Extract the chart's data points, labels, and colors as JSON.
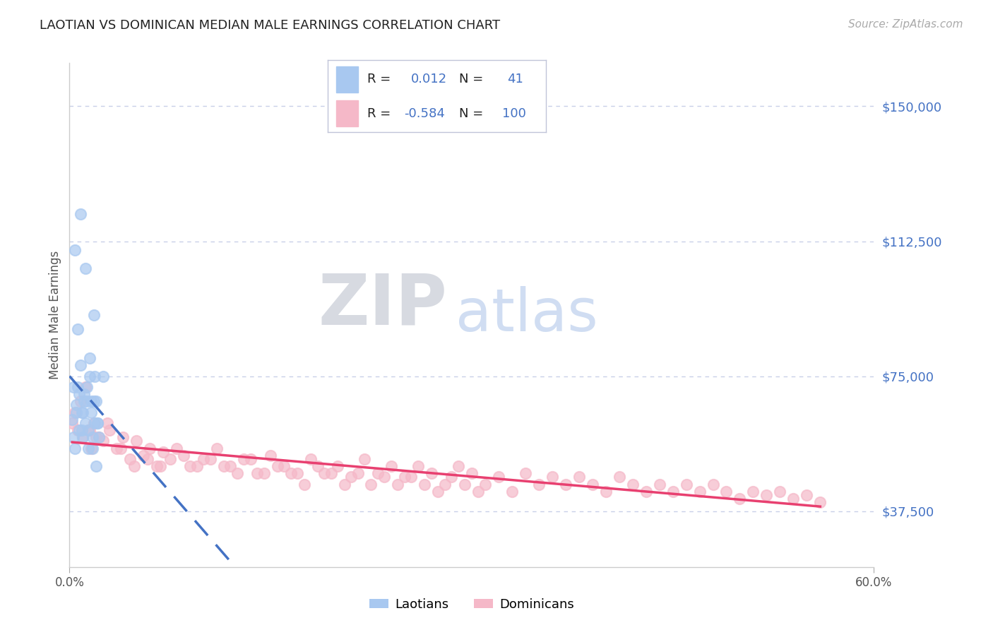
{
  "title": "LAOTIAN VS DOMINICAN MEDIAN MALE EARNINGS CORRELATION CHART",
  "source": "Source: ZipAtlas.com",
  "ylabel": "Median Male Earnings",
  "xlim": [
    0.0,
    0.6
  ],
  "ylim": [
    22000,
    162000
  ],
  "yticks": [
    37500,
    75000,
    112500,
    150000
  ],
  "ytick_labels": [
    "$37,500",
    "$75,000",
    "$112,500",
    "$150,000"
  ],
  "laotian_color": "#a8c8f0",
  "dominican_color": "#f5b8c8",
  "laotian_line_color": "#4472c4",
  "dominican_line_color": "#e84070",
  "grid_color": "#c8d0e8",
  "background_color": "#ffffff",
  "R_laotian": 0.012,
  "N_laotian": 41,
  "R_dominican": -0.584,
  "N_dominican": 100,
  "laotian_x": [
    0.002,
    0.003,
    0.004,
    0.005,
    0.006,
    0.007,
    0.008,
    0.009,
    0.01,
    0.011,
    0.012,
    0.013,
    0.014,
    0.015,
    0.016,
    0.017,
    0.018,
    0.019,
    0.02,
    0.021,
    0.003,
    0.006,
    0.009,
    0.012,
    0.015,
    0.018,
    0.021,
    0.004,
    0.007,
    0.01,
    0.013,
    0.016,
    0.019,
    0.022,
    0.005,
    0.008,
    0.011,
    0.014,
    0.017,
    0.02,
    0.025
  ],
  "laotian_y": [
    63000,
    58000,
    55000,
    67000,
    72000,
    60000,
    78000,
    65000,
    58000,
    70000,
    62000,
    68000,
    55000,
    80000,
    65000,
    58000,
    92000,
    75000,
    68000,
    62000,
    72000,
    88000,
    60000,
    105000,
    75000,
    68000,
    62000,
    110000,
    70000,
    65000,
    72000,
    68000,
    62000,
    58000,
    65000,
    120000,
    68000,
    60000,
    55000,
    50000,
    75000
  ],
  "dominican_x": [
    0.002,
    0.004,
    0.006,
    0.008,
    0.01,
    0.012,
    0.014,
    0.016,
    0.018,
    0.02,
    0.025,
    0.03,
    0.035,
    0.04,
    0.045,
    0.05,
    0.055,
    0.06,
    0.065,
    0.07,
    0.075,
    0.08,
    0.09,
    0.1,
    0.11,
    0.12,
    0.13,
    0.14,
    0.15,
    0.16,
    0.17,
    0.18,
    0.19,
    0.2,
    0.21,
    0.22,
    0.23,
    0.24,
    0.25,
    0.26,
    0.27,
    0.28,
    0.29,
    0.3,
    0.31,
    0.32,
    0.33,
    0.34,
    0.35,
    0.36,
    0.37,
    0.38,
    0.39,
    0.4,
    0.41,
    0.42,
    0.43,
    0.44,
    0.45,
    0.46,
    0.47,
    0.48,
    0.49,
    0.5,
    0.51,
    0.52,
    0.53,
    0.54,
    0.55,
    0.56,
    0.015,
    0.022,
    0.028,
    0.038,
    0.048,
    0.058,
    0.068,
    0.085,
    0.095,
    0.105,
    0.115,
    0.125,
    0.135,
    0.145,
    0.155,
    0.165,
    0.175,
    0.185,
    0.195,
    0.205,
    0.215,
    0.225,
    0.235,
    0.245,
    0.255,
    0.265,
    0.275,
    0.285,
    0.295,
    0.305
  ],
  "dominican_y": [
    62000,
    65000,
    60000,
    68000,
    58000,
    72000,
    60000,
    55000,
    62000,
    58000,
    57000,
    60000,
    55000,
    58000,
    52000,
    57000,
    53000,
    55000,
    50000,
    54000,
    52000,
    55000,
    50000,
    52000,
    55000,
    50000,
    52000,
    48000,
    53000,
    50000,
    48000,
    52000,
    48000,
    50000,
    47000,
    52000,
    48000,
    50000,
    47000,
    50000,
    48000,
    45000,
    50000,
    48000,
    45000,
    47000,
    43000,
    48000,
    45000,
    47000,
    45000,
    47000,
    45000,
    43000,
    47000,
    45000,
    43000,
    45000,
    43000,
    45000,
    43000,
    45000,
    43000,
    41000,
    43000,
    42000,
    43000,
    41000,
    42000,
    40000,
    60000,
    58000,
    62000,
    55000,
    50000,
    52000,
    50000,
    53000,
    50000,
    52000,
    50000,
    48000,
    52000,
    48000,
    50000,
    48000,
    45000,
    50000,
    48000,
    45000,
    48000,
    45000,
    47000,
    45000,
    47000,
    45000,
    43000,
    47000,
    45000,
    43000
  ]
}
